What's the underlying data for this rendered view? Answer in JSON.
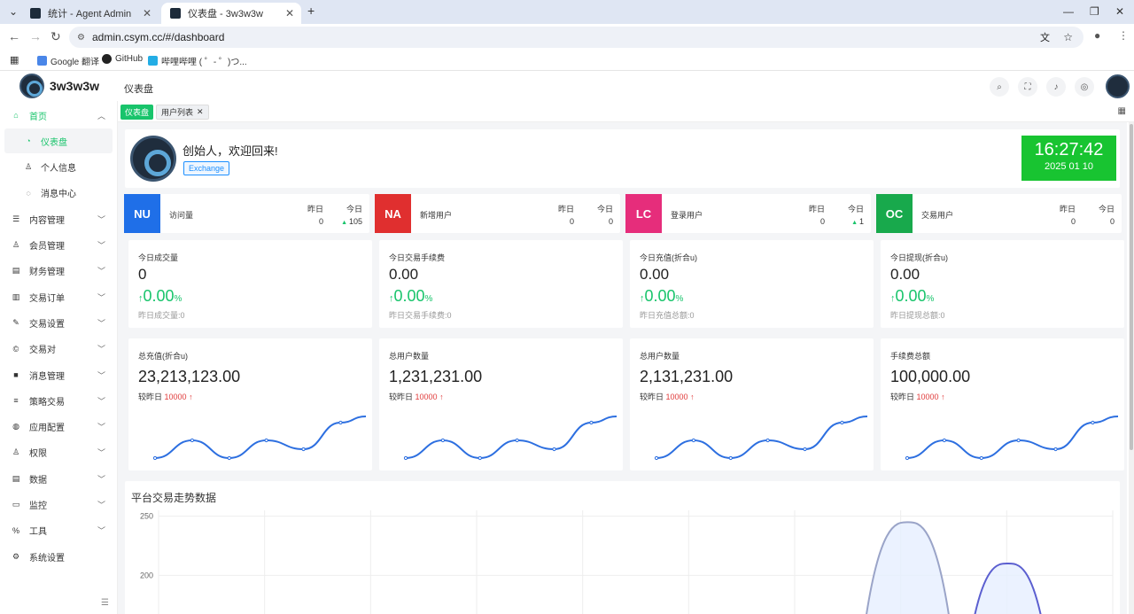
{
  "browser": {
    "tabs": [
      {
        "title": "统计 - Agent Admin",
        "active": false
      },
      {
        "title": "仪表盘 - 3w3w3w",
        "active": true
      }
    ],
    "url": "admin.csym.cc/#/dashboard",
    "bookmarks": [
      "Google 翻译",
      "GitHub",
      "哔哩哔哩 ( ゜- ゜)つ..."
    ]
  },
  "header": {
    "app_name": "3w3w3w",
    "breadcrumb": "仪表盘"
  },
  "sidebar": {
    "items": [
      {
        "label": "首页",
        "icon": "home-icon",
        "expanded": true
      },
      {
        "label": "仪表盘",
        "icon": "dashboard-icon",
        "sub": true,
        "selected": true
      },
      {
        "label": "个人信息",
        "icon": "user-icon",
        "sub": true
      },
      {
        "label": "消息中心",
        "icon": "message-icon",
        "sub": true
      },
      {
        "label": "内容管理",
        "icon": "list-icon"
      },
      {
        "label": "会员管理",
        "icon": "member-icon"
      },
      {
        "label": "财务管理",
        "icon": "finance-icon"
      },
      {
        "label": "交易订单",
        "icon": "order-icon"
      },
      {
        "label": "交易设置",
        "icon": "wrench-icon"
      },
      {
        "label": "交易对",
        "icon": "pair-icon"
      },
      {
        "label": "消息管理",
        "icon": "mail-icon"
      },
      {
        "label": "策略交易",
        "icon": "strategy-icon"
      },
      {
        "label": "应用配置",
        "icon": "config-icon"
      },
      {
        "label": "权限",
        "icon": "permission-icon"
      },
      {
        "label": "数据",
        "icon": "data-icon"
      },
      {
        "label": "监控",
        "icon": "monitor-icon"
      },
      {
        "label": "工具",
        "icon": "tool-icon"
      },
      {
        "label": "系统设置",
        "icon": "settings-icon"
      }
    ]
  },
  "tags": [
    {
      "label": "仪表盘",
      "active": true
    },
    {
      "label": "用户列表",
      "active": false
    }
  ],
  "welcome": {
    "title": "创始人，欢迎回来!",
    "badge": "Exchange",
    "time": "16:27:42",
    "date": "2025 01 10"
  },
  "mini_cards": [
    {
      "code": "NU",
      "color": "#1f6fe8",
      "title": "访问量",
      "yesterday_label": "昨日",
      "today_label": "今日",
      "yesterday": "0",
      "today": "105",
      "today_up": true
    },
    {
      "code": "NA",
      "color": "#e02f2f",
      "title": "新增用户",
      "yesterday_label": "昨日",
      "today_label": "今日",
      "yesterday": "0",
      "today": "0",
      "today_up": false
    },
    {
      "code": "LC",
      "color": "#e62d7b",
      "title": "登录用户",
      "yesterday_label": "昨日",
      "today_label": "今日",
      "yesterday": "0",
      "today": "1",
      "today_up": true
    },
    {
      "code": "OC",
      "color": "#18a94c",
      "title": "交易用户",
      "yesterday_label": "昨日",
      "today_label": "今日",
      "yesterday": "0",
      "today": "0",
      "today_up": false
    }
  ],
  "stat_cards": [
    {
      "title": "今日成交量",
      "value": "0",
      "percent": "0.00",
      "unit": "%",
      "footer": "昨日成交量:0"
    },
    {
      "title": "今日交易手续费",
      "value": "0.00",
      "percent": "0.00",
      "unit": "%",
      "footer": "昨日交易手续费:0"
    },
    {
      "title": "今日充值(折合u)",
      "value": "0.00",
      "percent": "0.00",
      "unit": "%",
      "footer": "昨日充值总额:0"
    },
    {
      "title": "今日提现(折合u)",
      "value": "0.00",
      "percent": "0.00",
      "unit": "%",
      "footer": "昨日提现总额:0"
    }
  ],
  "big_cards": [
    {
      "title": "总充值(折合u)",
      "value": "23,213,123.00",
      "compare_label": "较昨日",
      "compare_value": "10000"
    },
    {
      "title": "总用户数量",
      "value": "1,231,231.00",
      "compare_label": "较昨日",
      "compare_value": "10000"
    },
    {
      "title": "总用户数量",
      "value": "2,131,231.00",
      "compare_label": "较昨日",
      "compare_value": "10000"
    },
    {
      "title": "手续费总额",
      "value": "100,000.00",
      "compare_label": "较昨日",
      "compare_value": "10000"
    }
  ],
  "chart_data": [
    {
      "type": "line",
      "title": "",
      "note": "sparkline on each total card; no axes printed",
      "values": [
        1,
        3,
        1,
        3,
        2,
        5
      ],
      "color": "#2d6fe0"
    },
    {
      "type": "area",
      "title": "平台交易走势数据",
      "yticks": [
        250,
        200
      ],
      "ylim": [
        150,
        255
      ],
      "series": [
        {
          "color": "#9aa4c8",
          "fill": "#e6efff",
          "peak": 245,
          "peak_position": 0.785
        },
        {
          "color": "#5b5fd0",
          "fill": "#e6efff",
          "peak": 210,
          "peak_position": 0.89
        }
      ]
    }
  ]
}
